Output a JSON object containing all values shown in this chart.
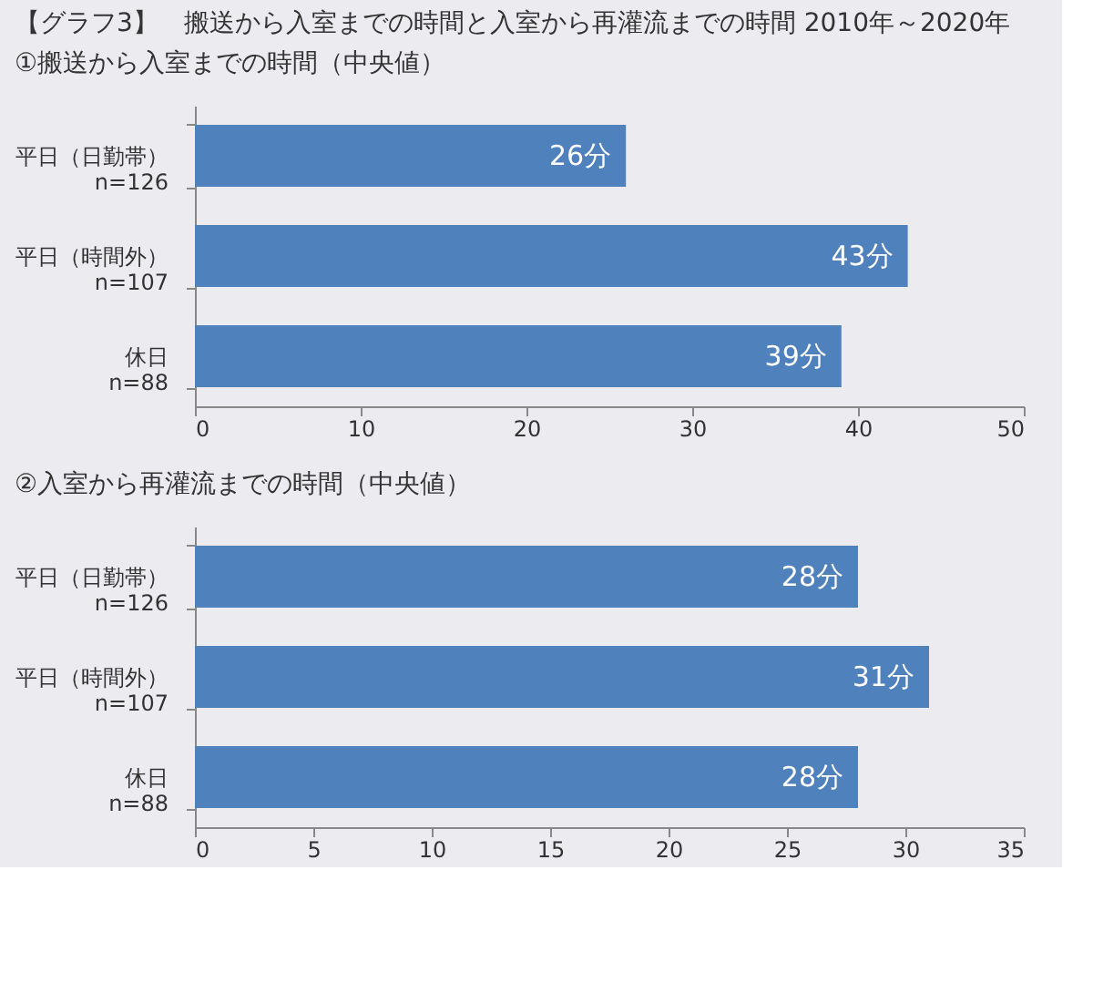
{
  "chart_data": [
    {
      "type": "bar",
      "orientation": "horizontal",
      "title": "【グラフ3】　搬送から入室までの時間と入室から再灌流までの時間 2010年～2020年",
      "subtitle": "①搬送から入室までの時間（中央値）",
      "categories": [
        "平日（日勤帯）\nn=126",
        "平日（時間外）\nn=107",
        "休日\nn=88"
      ],
      "values": [
        26,
        43,
        39
      ],
      "value_labels": [
        "26分",
        "43分",
        "39分"
      ],
      "color": "#4f81bd",
      "xlim": [
        0,
        50
      ],
      "xticks": [
        0,
        10,
        20,
        30,
        40,
        50
      ],
      "grid": false
    },
    {
      "type": "bar",
      "orientation": "horizontal",
      "title": "②入室から再灌流までの時間（中央値）",
      "categories": [
        "平日（日勤帯）\nn=126",
        "平日（時間外）\nn=107",
        "休日\nn=88"
      ],
      "values": [
        28,
        31,
        28
      ],
      "value_labels": [
        "28分",
        "31分",
        "28分"
      ],
      "color": "#4f81bd",
      "xlim": [
        0,
        35
      ],
      "xticks": [
        0,
        5,
        10,
        15,
        20,
        25,
        30,
        35
      ],
      "grid": false
    }
  ]
}
